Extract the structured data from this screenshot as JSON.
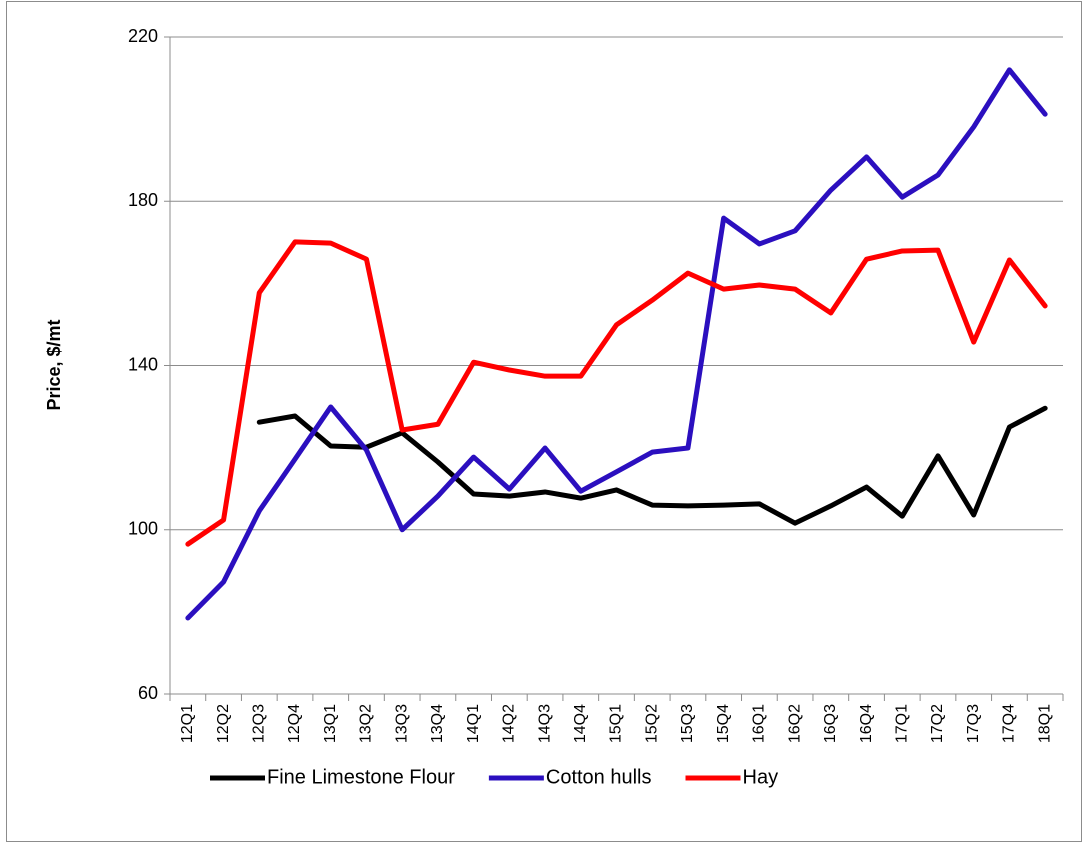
{
  "chart_data": {
    "type": "line",
    "y_label": "Price, $/mt",
    "categories": [
      "12Q1",
      "12Q2",
      "12Q3",
      "12Q4",
      "13Q1",
      "13Q2",
      "13Q3",
      "13Q4",
      "14Q1",
      "14Q2",
      "14Q3",
      "14Q4",
      "15Q1",
      "15Q2",
      "15Q3",
      "15Q4",
      "16Q1",
      "16Q2",
      "16Q3",
      "16Q4",
      "17Q1",
      "17Q2",
      "17Q3",
      "17Q4",
      "18Q1"
    ],
    "series": [
      {
        "name": "Fine Limestone Flour",
        "color": "#000000",
        "values": [
          null,
          null,
          126.2,
          127.7,
          120.4,
          120.1,
          123.6,
          116.5,
          108.7,
          108.2,
          109.2,
          107.7,
          109.7,
          106.0,
          105.8,
          106.0,
          106.3,
          101.6,
          105.8,
          110.4,
          103.3,
          118.0,
          103.6,
          125.0,
          129.6
        ]
      },
      {
        "name": "Cotton hulls",
        "color": "#2b0fbf",
        "values": [
          78.5,
          87.3,
          104.6,
          117.2,
          129.9,
          119.4,
          100.0,
          108.2,
          117.7,
          109.9,
          119.9,
          109.4,
          114.1,
          118.9,
          119.9,
          175.9,
          169.6,
          172.8,
          182.7,
          190.8,
          181.0,
          186.4,
          198.1,
          212.0,
          201.2
        ]
      },
      {
        "name": "Hay",
        "color": "#ff0000",
        "values": [
          96.5,
          102.4,
          157.7,
          170.1,
          169.8,
          165.9,
          124.3,
          125.7,
          140.8,
          138.9,
          137.4,
          137.4,
          149.9,
          155.9,
          162.5,
          158.6,
          159.6,
          158.6,
          152.8,
          165.9,
          167.9,
          168.1,
          145.7,
          165.7,
          154.5
        ]
      }
    ],
    "ylim": [
      60,
      220
    ],
    "yticks": [
      60,
      100,
      140,
      180,
      220
    ],
    "grid": true,
    "legend": "bottom"
  }
}
